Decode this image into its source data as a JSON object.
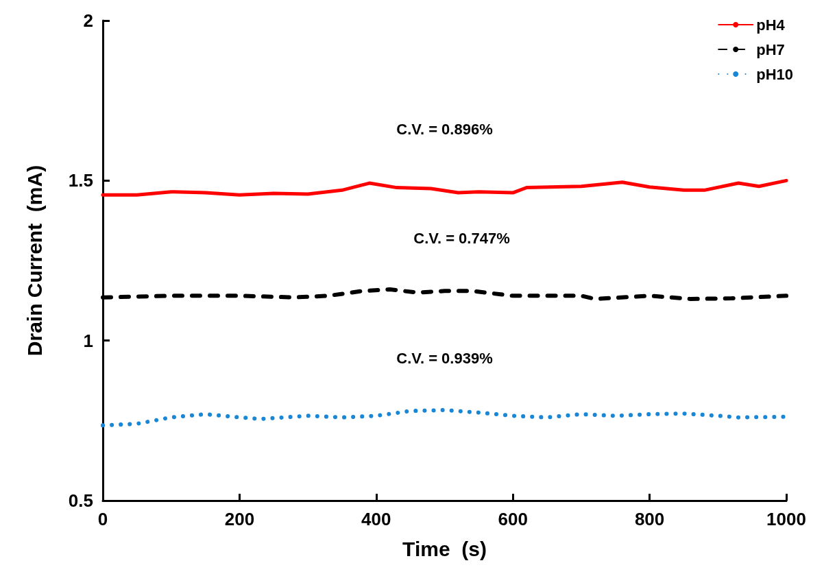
{
  "chart_data": {
    "type": "line",
    "xlabel": "Time  (s)",
    "ylabel": "Drain Current  (mA)",
    "xlim": [
      0,
      1000
    ],
    "xticks": [
      0,
      200,
      400,
      600,
      800,
      1000
    ],
    "ylim": [
      0.5,
      2
    ],
    "yticks": [
      0.5,
      1,
      1.5,
      2
    ],
    "grid": false,
    "legend": "top right",
    "marker": "none",
    "annotations": [
      "C.V. = 0.896%",
      "C.V. = 0.747%",
      "C.V. = 0.939%"
    ],
    "series": [
      {
        "name": "pH4",
        "color": "#ff0000",
        "line_style": "solid",
        "x": [
          0,
          50,
          100,
          150,
          200,
          250,
          300,
          350,
          390,
          430,
          480,
          520,
          550,
          600,
          620,
          700,
          760,
          800,
          850,
          880,
          930,
          960,
          1000
        ],
        "values": [
          1.455,
          1.455,
          1.465,
          1.462,
          1.455,
          1.46,
          1.458,
          1.47,
          1.492,
          1.478,
          1.475,
          1.462,
          1.465,
          1.462,
          1.478,
          1.482,
          1.495,
          1.48,
          1.47,
          1.47,
          1.492,
          1.482,
          1.5
        ]
      },
      {
        "name": "pH7",
        "color": "#000000",
        "line_style": "dashed",
        "x": [
          0,
          100,
          200,
          280,
          330,
          380,
          420,
          460,
          500,
          540,
          580,
          600,
          700,
          720,
          800,
          860,
          920,
          1000
        ],
        "values": [
          1.135,
          1.14,
          1.14,
          1.135,
          1.14,
          1.155,
          1.16,
          1.15,
          1.155,
          1.155,
          1.145,
          1.14,
          1.14,
          1.13,
          1.14,
          1.13,
          1.132,
          1.14
        ]
      },
      {
        "name": "pH10",
        "color": "#1a86d6",
        "line_style": "dotted",
        "x": [
          0,
          50,
          100,
          150,
          200,
          230,
          300,
          350,
          400,
          450,
          500,
          550,
          600,
          650,
          700,
          750,
          800,
          850,
          900,
          930,
          1000
        ],
        "values": [
          0.735,
          0.74,
          0.76,
          0.77,
          0.76,
          0.755,
          0.765,
          0.76,
          0.765,
          0.78,
          0.783,
          0.775,
          0.765,
          0.76,
          0.77,
          0.765,
          0.77,
          0.772,
          0.765,
          0.76,
          0.762
        ]
      }
    ]
  }
}
